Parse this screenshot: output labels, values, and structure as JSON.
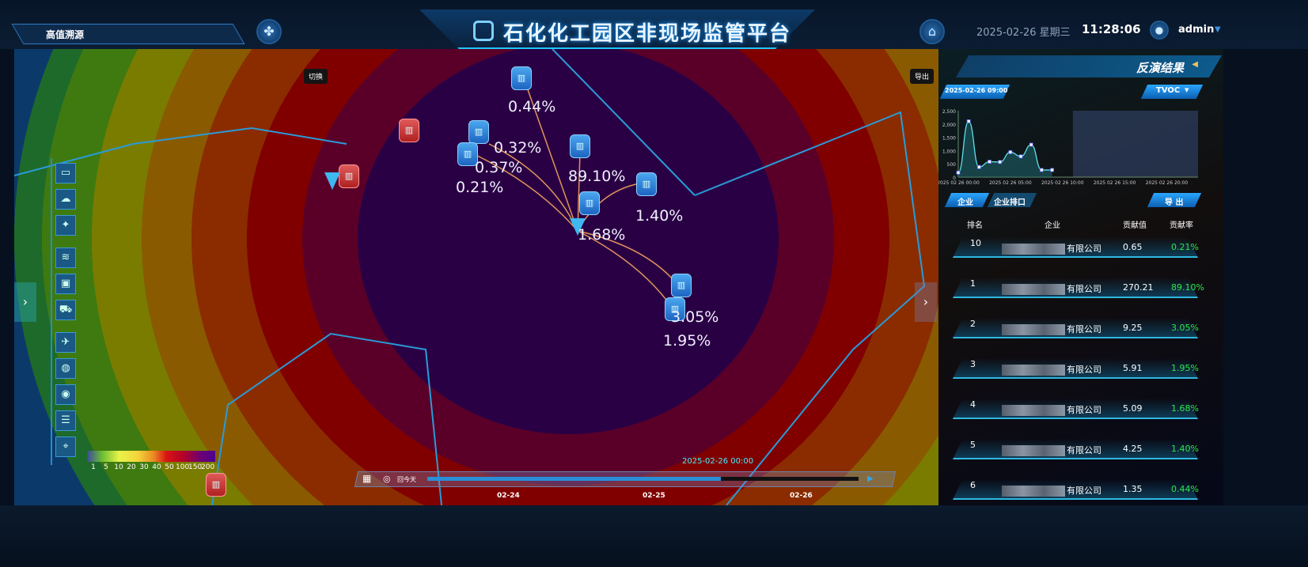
{
  "header": {
    "title": "石化化工园区非现场监管平台",
    "mode_label": "高值溯源",
    "date": "2025-02-26 星期三",
    "time": "11:28:06",
    "user": "admin"
  },
  "map": {
    "switch_label": "切换",
    "export_label": "导出",
    "sources": [
      {
        "pct": "0.44%"
      },
      {
        "pct": "0.32%"
      },
      {
        "pct": "0.37%"
      },
      {
        "pct": "0.21%"
      },
      {
        "pct": "89.10%"
      },
      {
        "pct": "1.40%"
      },
      {
        "pct": "1.68%"
      },
      {
        "pct": "3.05%"
      },
      {
        "pct": "1.95%"
      }
    ],
    "legend": {
      "ticks": [
        "1",
        "5",
        "10",
        "20",
        "30",
        "40",
        "50",
        "100",
        "150",
        "200"
      ],
      "colors": [
        "#3c4c9a",
        "#6cbf32",
        "#e8f34a",
        "#f5d33a",
        "#ea8a22",
        "#d81414",
        "#b0002a",
        "#700070",
        "#4b0090"
      ]
    },
    "toolbar_icons": [
      "layers-window-icon",
      "cloud-icon",
      "wind-tree-icon",
      "wind-icon",
      "scan-icon",
      "vehicle-icon",
      "satellite-icon",
      "globe-icon",
      "circle-layer-icon",
      "stack-icon",
      "location-icon"
    ]
  },
  "timeline": {
    "current": "2025-02-26 00:00",
    "today_label": "回今天",
    "dates": [
      "02-24",
      "02-25",
      "02-26"
    ],
    "progress_pct": 68
  },
  "panel": {
    "title": "反演结果",
    "time_badge": "2025-02-26 09:00",
    "pollutant": "TVOC",
    "tabs": [
      "企业",
      "企业排口"
    ],
    "export_label": "导 出",
    "columns": [
      "排名",
      "企业",
      "贡献值",
      "贡献率"
    ],
    "rows": [
      {
        "rank": "10",
        "company": "有限公司",
        "value": "0.65",
        "rate": "0.21%"
      },
      {
        "rank": "1",
        "company": "有限公司",
        "value": "270.21",
        "rate": "89.10%"
      },
      {
        "rank": "2",
        "company": "有限公司",
        "value": "9.25",
        "rate": "3.05%"
      },
      {
        "rank": "3",
        "company": "有限公司",
        "value": "5.91",
        "rate": "1.95%"
      },
      {
        "rank": "4",
        "company": "有限公司",
        "value": "5.09",
        "rate": "1.68%"
      },
      {
        "rank": "5",
        "company": "有限公司",
        "value": "4.25",
        "rate": "1.40%"
      },
      {
        "rank": "6",
        "company": "有限公司",
        "value": "1.35",
        "rate": "0.44%"
      }
    ]
  },
  "chart_data": {
    "type": "area",
    "x": [
      "2025 02 26 00:00",
      "01:00",
      "02:00",
      "03:00",
      "04:00",
      "05:00",
      "06:00",
      "07:00",
      "08:00",
      "09:00"
    ],
    "values": [
      170,
      2100,
      380,
      580,
      570,
      940,
      780,
      1220,
      270,
      270
    ],
    "xticks": [
      "2025 02 26 00:00",
      "2025 02 26 05:00",
      "2025 02 26 10:00",
      "2025 02 26 15:00",
      "2025 02 26 20:00"
    ],
    "yticks": [
      "0",
      "500",
      "1,000",
      "1,500",
      "2,000",
      "2,500"
    ],
    "ylim": [
      0,
      2500
    ],
    "xlim_hours": [
      0,
      23
    ],
    "shaded_range_hours": [
      11,
      23
    ],
    "line_color": "#5fe0e8"
  }
}
